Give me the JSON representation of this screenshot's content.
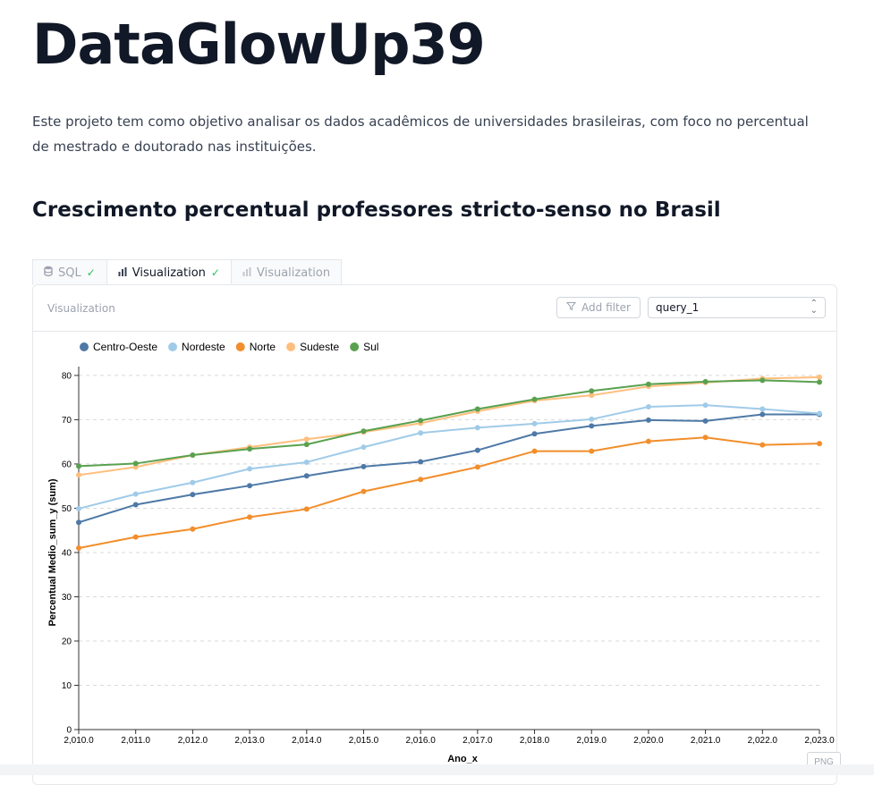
{
  "page": {
    "title": "DataGlowUp39",
    "description": "Este projeto tem como objetivo analisar os dados acadêmicos de universidades brasileiras, com foco no percentual de mestrado e doutorado nas instituições.",
    "section_title": "Crescimento percentual professores stricto-senso no Brasil"
  },
  "tabs": [
    {
      "label": "SQL",
      "icon": "database-icon",
      "status": "check-icon",
      "active": false
    },
    {
      "label": "Visualization",
      "icon": "bar-chart-icon",
      "status": "check-icon",
      "active": true
    },
    {
      "label": "Visualization",
      "icon": "bar-chart-icon",
      "status": "",
      "active": false
    }
  ],
  "panel": {
    "label": "Visualization",
    "add_filter_label": "Add filter",
    "query_select_value": "query_1",
    "png_button": "PNG"
  },
  "chart_data": {
    "type": "line",
    "title": "",
    "xlabel": "Ano_x",
    "ylabel": "Percentual Medio_sum_y (sum)",
    "x": [
      2010,
      2011,
      2012,
      2013,
      2014,
      2015,
      2016,
      2017,
      2018,
      2019,
      2020,
      2021,
      2022,
      2023
    ],
    "x_tick_labels": [
      "2,010.0",
      "2,011.0",
      "2,012.0",
      "2,013.0",
      "2,014.0",
      "2,015.0",
      "2,016.0",
      "2,017.0",
      "2,018.0",
      "2,019.0",
      "2,020.0",
      "2,021.0",
      "2,022.0",
      "2,023.0"
    ],
    "y_ticks": [
      0,
      10,
      20,
      30,
      40,
      50,
      60,
      70,
      80
    ],
    "ylim": [
      0,
      82
    ],
    "grid": "horizontal dashed",
    "legend_position": "top-left",
    "series": [
      {
        "name": "Centro-Oeste",
        "color": "#4e79a7",
        "values": [
          46.8,
          50.8,
          53.1,
          55.1,
          57.3,
          59.4,
          60.5,
          63.1,
          66.8,
          68.6,
          69.9,
          69.7,
          71.2,
          71.2
        ]
      },
      {
        "name": "Nordeste",
        "color": "#a0cbe8",
        "values": [
          49.9,
          53.2,
          55.8,
          58.9,
          60.4,
          63.8,
          67.0,
          68.2,
          69.1,
          70.1,
          72.9,
          73.3,
          72.4,
          71.4
        ]
      },
      {
        "name": "Norte",
        "color": "#f28e2b",
        "values": [
          41.0,
          43.5,
          45.3,
          48.0,
          49.8,
          53.8,
          56.5,
          59.3,
          62.9,
          62.9,
          65.1,
          66.0,
          64.3,
          64.6
        ]
      },
      {
        "name": "Sudeste",
        "color": "#ffbe7d",
        "values": [
          57.5,
          59.3,
          62.0,
          63.8,
          65.6,
          67.2,
          69.2,
          71.9,
          74.3,
          75.5,
          77.5,
          78.4,
          79.3,
          79.6
        ]
      },
      {
        "name": "Sul",
        "color": "#59a14f",
        "values": [
          59.5,
          60.1,
          62.0,
          63.4,
          64.4,
          67.4,
          69.8,
          72.4,
          74.6,
          76.5,
          78.0,
          78.6,
          78.9,
          78.5
        ]
      }
    ]
  }
}
